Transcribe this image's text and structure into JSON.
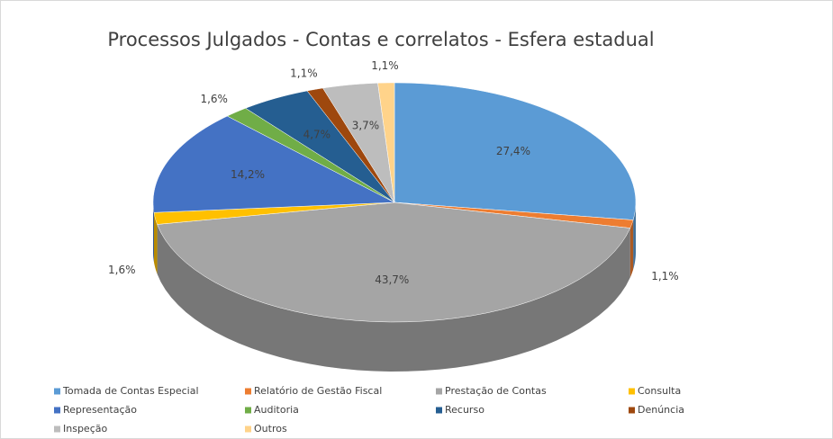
{
  "chart_data": {
    "type": "pie3d",
    "title": "Processos Julgados - Contas e correlatos - Esfera estadual",
    "categories": [
      "Tomada de Contas Especial",
      "Relatório de Gestão Fiscal",
      "Prestação de Contas",
      "Consulta",
      "Representação",
      "Auditoria",
      "Recurso",
      "Denúncia",
      "Inspeção",
      "Outros"
    ],
    "values": [
      27.4,
      1.1,
      43.7,
      1.6,
      14.2,
      1.6,
      4.7,
      1.1,
      3.7,
      1.1
    ],
    "value_labels": [
      "27,4%",
      "1,1%",
      "43,7%",
      "1,6%",
      "14,2%",
      "1,6%",
      "4,7%",
      "1,1%",
      "3,7%",
      "1,1%"
    ],
    "colors": [
      "#5b9bd5",
      "#ed7d31",
      "#a5a5a5",
      "#ffc000",
      "#4472c4",
      "#70ad47",
      "#255e91",
      "#9e480e",
      "#bdbdbd",
      "#ffd38a"
    ],
    "legend": "bottom"
  }
}
